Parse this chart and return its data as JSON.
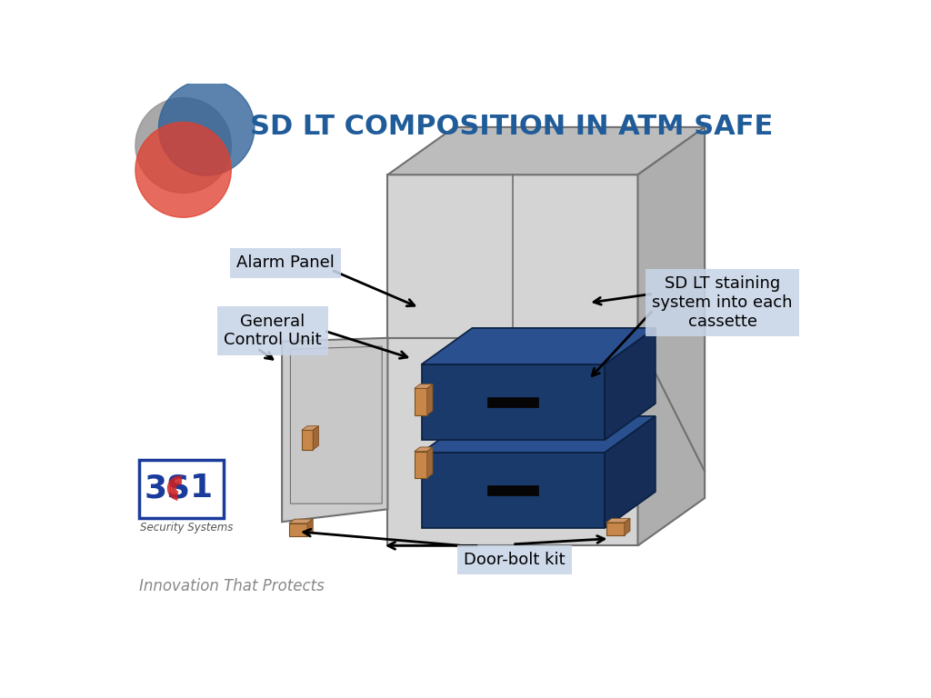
{
  "title": "SD LT COMPOSITION IN ATM SAFE",
  "title_color": "#1F5C99",
  "title_fontsize": 22,
  "bg_color": "#FFFFFF",
  "subtitle": "Innovation That Protects",
  "labels": {
    "alarm_panel": "Alarm Panel",
    "general_control": "General\nControl Unit",
    "sd_lt": "SD LT staining\nsystem into each\ncassette",
    "door_bolt": "Door-bolt kit"
  },
  "label_bg": "#C8D4E8",
  "label_fontsize": 13,
  "safe_front_color": "#D4D4D4",
  "safe_top_color": "#BCBCBC",
  "safe_right_color": "#AEAEAE",
  "safe_edge_color": "#707070",
  "cassette_front_color": "#1A3A6B",
  "cassette_top_color": "#2A5090",
  "cassette_right_color": "#162D58",
  "cassette_edge_color": "#0A2040",
  "cassette_slot_color": "#050505",
  "door_color": "#CCCCCC",
  "door_edge_color": "#707070",
  "bolt_face": "#C8874A",
  "bolt_top": "#D0986A",
  "bolt_right": "#A06838",
  "bolt_edge": "#7A5020",
  "circle_blue": "#2D6096",
  "circle_red": "#E04030",
  "circle_gray": "#909090",
  "circle_alpha": 0.78
}
